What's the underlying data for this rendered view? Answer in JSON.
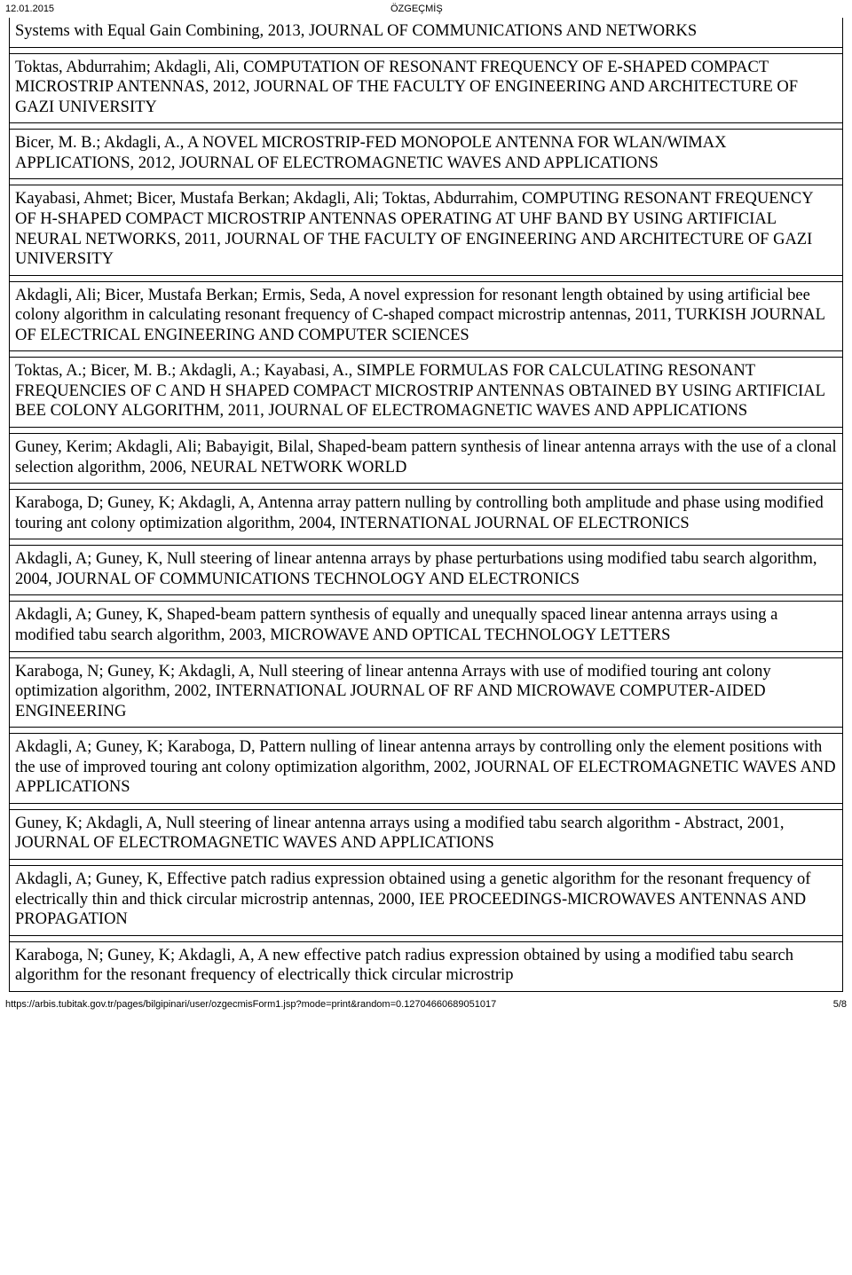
{
  "header": {
    "date": "12.01.2015",
    "title": "ÖZGEÇMİŞ"
  },
  "entries": [
    "Systems with Equal Gain Combining, 2013, JOURNAL OF COMMUNICATIONS AND NETWORKS",
    "Toktas, Abdurrahim; Akdagli, Ali, COMPUTATION OF RESONANT FREQUENCY OF E-SHAPED COMPACT MICROSTRIP ANTENNAS, 2012, JOURNAL OF THE FACULTY OF ENGINEERING AND ARCHITECTURE OF GAZI UNIVERSITY",
    "Bicer, M. B.; Akdagli, A., A NOVEL MICROSTRIP-FED MONOPOLE ANTENNA FOR WLAN/WIMAX APPLICATIONS, 2012, JOURNAL OF ELECTROMAGNETIC WAVES AND APPLICATIONS",
    "Kayabasi, Ahmet; Bicer, Mustafa Berkan; Akdagli, Ali; Toktas, Abdurrahim, COMPUTING RESONANT FREQUENCY OF H-SHAPED COMPACT MICROSTRIP ANTENNAS OPERATING AT UHF BAND BY USING ARTIFICIAL NEURAL NETWORKS, 2011, JOURNAL OF THE FACULTY OF ENGINEERING AND ARCHITECTURE OF GAZI UNIVERSITY",
    "Akdagli, Ali; Bicer, Mustafa Berkan; Ermis, Seda, A novel expression for resonant length obtained by using artificial bee colony algorithm in calculating resonant frequency of C-shaped compact microstrip antennas, 2011, TURKISH JOURNAL OF ELECTRICAL ENGINEERING AND COMPUTER SCIENCES",
    "Toktas, A.; Bicer, M. B.; Akdagli, A.; Kayabasi, A., SIMPLE FORMULAS FOR CALCULATING RESONANT FREQUENCIES OF C AND H SHAPED COMPACT MICROSTRIP ANTENNAS OBTAINED BY USING ARTIFICIAL BEE COLONY ALGORITHM, 2011, JOURNAL OF ELECTROMAGNETIC WAVES AND APPLICATIONS",
    "Guney, Kerim; Akdagli, Ali; Babayigit, Bilal, Shaped-beam pattern synthesis of linear antenna arrays with the use of a clonal selection algorithm, 2006, NEURAL NETWORK WORLD",
    "Karaboga, D; Guney, K; Akdagli, A, Antenna array pattern nulling by controlling both amplitude and phase using modified touring ant colony optimization algorithm, 2004, INTERNATIONAL JOURNAL OF ELECTRONICS",
    "Akdagli, A; Guney, K, Null steering of linear antenna arrays by phase perturbations using modified tabu search algorithm, 2004, JOURNAL OF COMMUNICATIONS TECHNOLOGY AND ELECTRONICS",
    "Akdagli, A; Guney, K, Shaped-beam pattern synthesis of equally and unequally spaced linear antenna arrays using a modified tabu search algorithm, 2003, MICROWAVE AND OPTICAL TECHNOLOGY LETTERS",
    "Karaboga, N; Guney, K; Akdagli, A, Null steering of linear antenna Arrays with use of modified touring ant colony optimization algorithm, 2002, INTERNATIONAL JOURNAL OF RF AND MICROWAVE COMPUTER-AIDED ENGINEERING",
    "Akdagli, A; Guney, K; Karaboga, D, Pattern nulling of linear antenna arrays by controlling only the element positions with the use of improved touring ant colony optimization algorithm, 2002, JOURNAL OF ELECTROMAGNETIC WAVES AND APPLICATIONS",
    "Guney, K; Akdagli, A, Null steering of linear antenna arrays using a modified tabu search algorithm - Abstract, 2001, JOURNAL OF ELECTROMAGNETIC WAVES AND APPLICATIONS",
    "Akdagli, A; Guney, K, Effective patch radius expression obtained using a genetic algorithm for the resonant frequency of electrically thin and thick circular microstrip antennas, 2000, IEE PROCEEDINGS-MICROWAVES ANTENNAS AND PROPAGATION",
    "Karaboga, N; Guney, K; Akdagli, A, A new effective patch radius expression obtained by using a modified tabu search algorithm for the resonant frequency of electrically thick circular microstrip"
  ],
  "footer": {
    "url": "https://arbis.tubitak.gov.tr/pages/bilgipinari/user/ozgecmisForm1.jsp?mode=print&random=0.12704660689051017",
    "page": "5/8"
  }
}
